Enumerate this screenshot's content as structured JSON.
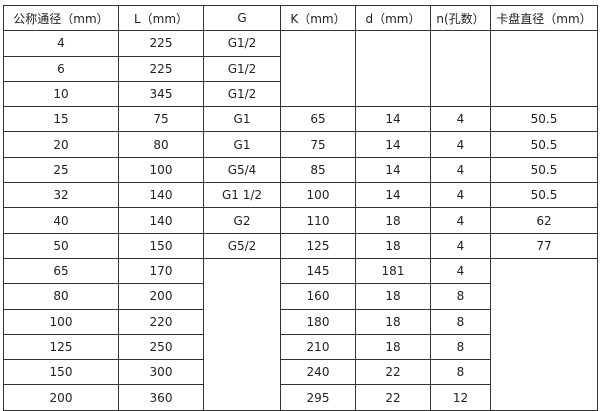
{
  "table": {
    "headers": [
      "公称通径（mm）",
      "L（mm）",
      "G",
      "K（mm）",
      "d（mm）",
      "n(孔数）",
      "卡盘直径（mm）"
    ],
    "rows": [
      [
        "4",
        "225",
        "G1/2",
        "",
        "",
        "",
        ""
      ],
      [
        "6",
        "225",
        "G1/2",
        null,
        null,
        null,
        null
      ],
      [
        "10",
        "345",
        "G1/2",
        null,
        null,
        null,
        null
      ],
      [
        "15",
        "75",
        "G1",
        "65",
        "14",
        "4",
        "50.5"
      ],
      [
        "20",
        "80",
        "G1",
        "75",
        "14",
        "4",
        "50.5"
      ],
      [
        "25",
        "100",
        "G5/4",
        "85",
        "14",
        "4",
        "50.5"
      ],
      [
        "32",
        "140",
        "G1  1/2",
        "100",
        "14",
        "4",
        "50.5"
      ],
      [
        "40",
        "140",
        "G2",
        "110",
        "18",
        "4",
        "62"
      ],
      [
        "50",
        "150",
        "G5/2",
        "125",
        "18",
        "4",
        "77"
      ],
      [
        "65",
        "170",
        "",
        "145",
        "181",
        "4",
        ""
      ],
      [
        "80",
        "200",
        null,
        "160",
        "18",
        "8",
        null
      ],
      [
        "100",
        "220",
        null,
        "180",
        "18",
        "8",
        null
      ],
      [
        "125",
        "250",
        null,
        "210",
        "18",
        "8",
        null
      ],
      [
        "150",
        "300",
        null,
        "240",
        "22",
        "8",
        null
      ],
      [
        "200",
        "360",
        null,
        "295",
        "22",
        "12",
        null
      ]
    ]
  }
}
